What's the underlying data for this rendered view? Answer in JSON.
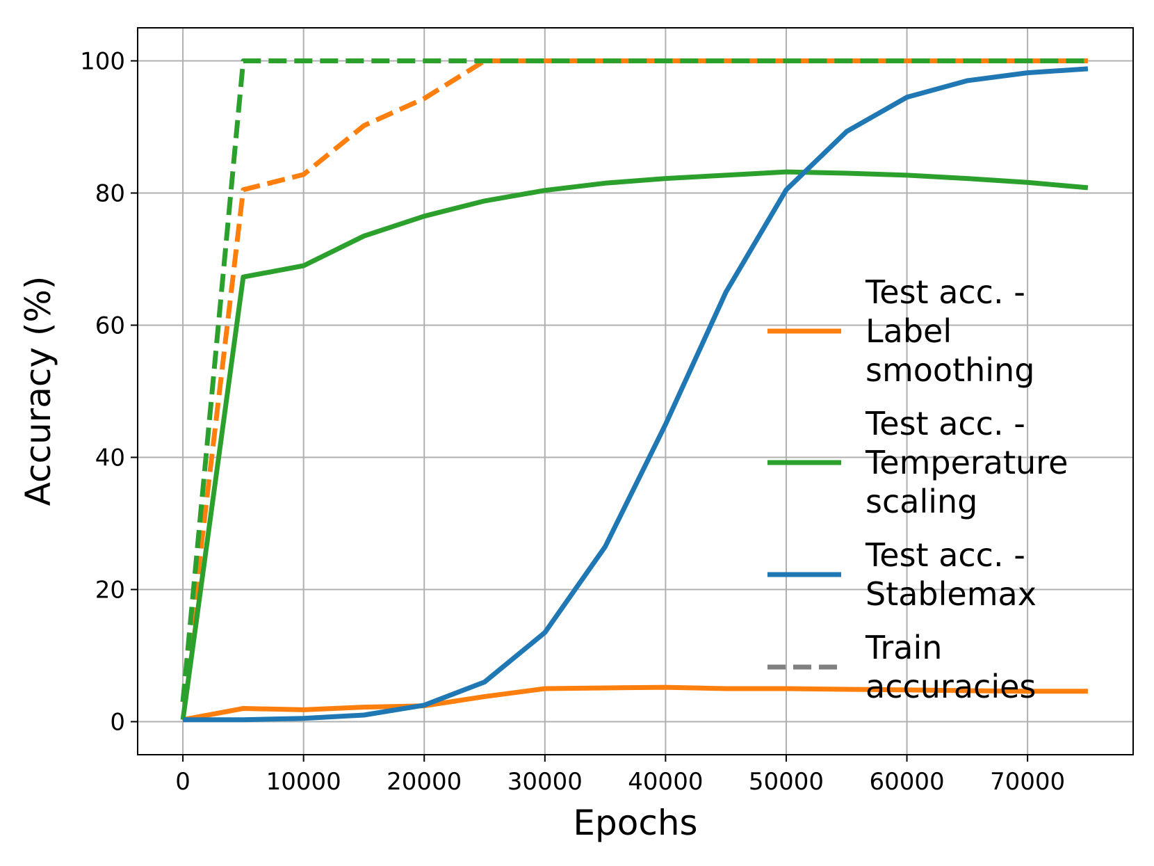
{
  "chart_data": {
    "type": "line",
    "title": "",
    "xlabel": "Epochs",
    "ylabel": "Accuracy (%)",
    "xlim": [
      -3750,
      78750
    ],
    "ylim": [
      -5,
      105
    ],
    "xticks": [
      0,
      10000,
      20000,
      30000,
      40000,
      50000,
      60000,
      70000
    ],
    "yticks": [
      0,
      20,
      40,
      60,
      80,
      100
    ],
    "grid": true,
    "legend_position": "center-right",
    "series": [
      {
        "name": "Label smoothing",
        "kind": "test",
        "color": "#ff7f0e",
        "style": "solid",
        "x": [
          0,
          5000,
          10000,
          15000,
          20000,
          25000,
          30000,
          35000,
          40000,
          45000,
          50000,
          55000,
          60000,
          65000,
          70000,
          75000
        ],
        "y": [
          0.3,
          2.0,
          1.8,
          2.2,
          2.4,
          3.8,
          5.0,
          5.1,
          5.2,
          5.0,
          5.0,
          4.9,
          4.8,
          4.7,
          4.6,
          4.6
        ]
      },
      {
        "name": "Temperature scaling",
        "kind": "test",
        "color": "#2ca02c",
        "style": "solid",
        "x": [
          0,
          5000,
          10000,
          15000,
          20000,
          25000,
          30000,
          35000,
          40000,
          45000,
          50000,
          55000,
          60000,
          65000,
          70000,
          75000
        ],
        "y": [
          0.3,
          67.3,
          69.0,
          73.5,
          76.5,
          78.8,
          80.4,
          81.5,
          82.2,
          82.7,
          83.2,
          83.0,
          82.7,
          82.2,
          81.6,
          80.8
        ]
      },
      {
        "name": "Stablemax",
        "kind": "test",
        "color": "#1f77b4",
        "style": "solid",
        "x": [
          0,
          5000,
          10000,
          15000,
          20000,
          25000,
          30000,
          35000,
          40000,
          45000,
          50000,
          55000,
          60000,
          65000,
          70000,
          75000
        ],
        "y": [
          0.3,
          0.3,
          0.5,
          1.0,
          2.5,
          6.0,
          13.5,
          26.5,
          45.0,
          65.0,
          80.5,
          89.3,
          94.5,
          97.0,
          98.2,
          98.8
        ]
      },
      {
        "name": "Label smoothing",
        "kind": "train",
        "color": "#ff7f0e",
        "style": "dashed",
        "x": [
          0,
          5000,
          10000,
          15000,
          20000,
          25000,
          30000,
          35000,
          40000,
          45000,
          50000,
          55000,
          60000,
          65000,
          70000,
          75000
        ],
        "y": [
          3.0,
          80.5,
          82.8,
          90.2,
          94.3,
          100,
          100,
          100,
          100,
          100,
          100,
          100,
          100,
          100,
          100,
          100
        ]
      },
      {
        "name": "Temperature scaling",
        "kind": "train",
        "color": "#2ca02c",
        "style": "dashed",
        "x": [
          0,
          5000,
          10000,
          15000,
          20000,
          25000,
          30000,
          35000,
          40000,
          45000,
          50000,
          55000,
          60000,
          65000,
          70000,
          75000
        ],
        "y": [
          3.0,
          100,
          100,
          100,
          100,
          100,
          100,
          100,
          100,
          100,
          100,
          100,
          100,
          100,
          100,
          100
        ]
      }
    ],
    "legend": [
      {
        "lines": [
          "Test acc. -",
          " Label",
          " smoothing"
        ],
        "color": "#ff7f0e",
        "style": "solid"
      },
      {
        "lines": [
          "Test acc. -",
          " Temperature",
          " scaling"
        ],
        "color": "#2ca02c",
        "style": "solid"
      },
      {
        "lines": [
          "Test acc. -",
          " Stablemax"
        ],
        "color": "#1f77b4",
        "style": "solid"
      },
      {
        "lines": [
          "Train",
          " accuracies"
        ],
        "color": "#808080",
        "style": "dashed"
      }
    ]
  }
}
